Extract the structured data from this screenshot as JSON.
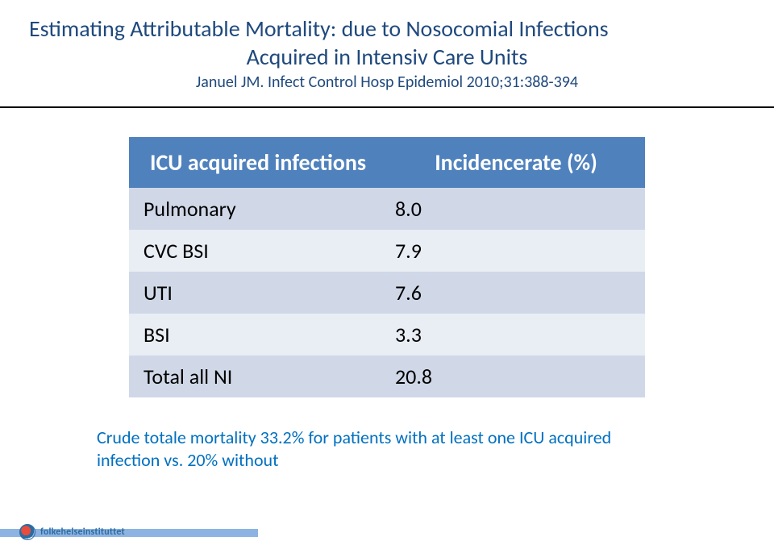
{
  "title": {
    "line1": "Estimating Attributable Mortality: due to Nosocomial Infections",
    "line2": "Acquired in Intensiv Care Units",
    "subtitle": "Januel JM. Infect Control Hosp Epidemiol 2010;31:388-394",
    "color": "#1f497d",
    "fontsize_title": 28,
    "fontsize_subtitle": 20
  },
  "rule_color": "#000000",
  "table": {
    "header": {
      "left": "ICU acquired infections",
      "right": "Incidencerate (%)",
      "bg": "#4f81bd",
      "fg": "#ffffff",
      "fontsize": 28
    },
    "rows": [
      {
        "name": "Pulmonary",
        "value": "8.0"
      },
      {
        "name": "CVC BSI",
        "value": "7.9"
      },
      {
        "name": "UTI",
        "value": "7.6"
      },
      {
        "name": "BSI",
        "value": "3.3"
      },
      {
        "name": "Total all NI",
        "value": "20.8"
      }
    ],
    "band_colors": {
      "a": "#d0d8e8",
      "b": "#e9edf4"
    },
    "cell_fontsize": 26
  },
  "footnote": {
    "text": "Crude totale mortality 33.2% for patients with at least one ICU acquired infection vs. 20% without",
    "color": "#0070c0",
    "fontsize": 22
  },
  "footer": {
    "bar_color": "#8db3e2",
    "logo_text": "folkehelseinstituttet",
    "logo_text_color": "#2b6ca3"
  }
}
